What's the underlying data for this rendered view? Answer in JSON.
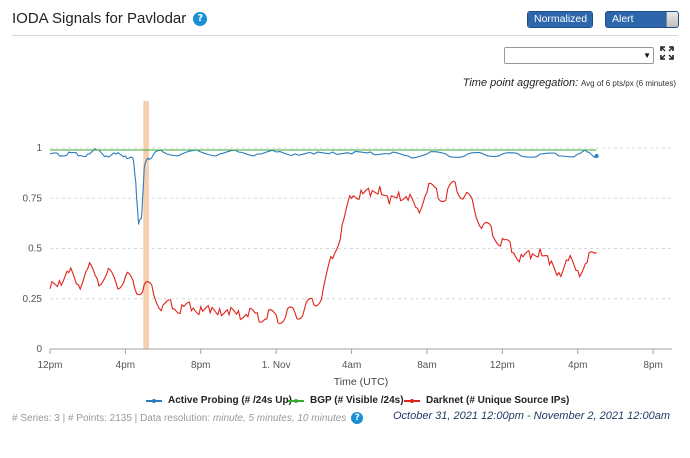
{
  "header": {
    "title": "IODA Signals for Pavlodar"
  },
  "toggles": {
    "normalized": "Normalized",
    "alert_bands": "Alert Bands"
  },
  "aggregation": {
    "label": "Time point aggregation:",
    "value": "Avg of 6 pts/px (6 minutes)"
  },
  "footer": {
    "series_count": "# Series: 3",
    "points_count": "# Points: 2135",
    "resolution_label": "Data resolution:",
    "resolution_value": "minute, 5 minutes, 10 minutes",
    "range": "October 31, 2021 12:00pm - November 2, 2021 12:00am"
  },
  "icons": {
    "help": "help-icon",
    "fullscreen": "fullscreen-icon",
    "dropdown": "chevron-down-icon"
  },
  "chart_data": {
    "type": "line",
    "xlabel": "Time (UTC)",
    "x_ticks": [
      "12pm",
      "4pm",
      "8pm",
      "1. Nov",
      "4am",
      "8am",
      "12pm",
      "4pm",
      "8pm"
    ],
    "x_tick_hours": [
      0,
      4,
      8,
      12,
      16,
      20,
      24,
      28,
      32
    ],
    "y_ticks": [
      "0",
      "0.25",
      "0.5",
      "0.75",
      "1"
    ],
    "ylim": [
      0,
      1
    ],
    "xlim_hours": [
      0,
      33
    ],
    "alert_band_hours": [
      4.95,
      5.25
    ],
    "grid": "horizontal dashed",
    "colors": {
      "active_probing": "#2b7bbd",
      "bgp": "#3aaa35",
      "darknet": "#e0231b",
      "alert_band": "#f6cfae"
    },
    "series": [
      {
        "name": "Active Probing (# /24s Up)",
        "color": "#2b7bbd",
        "x_hours": [
          0,
          0.5,
          1,
          1.5,
          2,
          2.5,
          3,
          3.5,
          4,
          4.4,
          4.55,
          4.7,
          4.85,
          5.0,
          5.2,
          5.5,
          6,
          7,
          8,
          9,
          10,
          11,
          12,
          13,
          14,
          15,
          16,
          17,
          18,
          19,
          20,
          21,
          22,
          23,
          24,
          25,
          26,
          27,
          28,
          28.5,
          29
        ],
        "values": [
          0.97,
          0.96,
          0.98,
          0.96,
          0.97,
          0.99,
          0.96,
          0.97,
          0.96,
          0.95,
          0.83,
          0.62,
          0.65,
          0.9,
          0.95,
          0.97,
          0.98,
          0.97,
          0.98,
          0.97,
          0.98,
          0.97,
          0.98,
          0.97,
          0.97,
          0.98,
          0.97,
          0.98,
          0.97,
          0.96,
          0.97,
          0.97,
          0.96,
          0.97,
          0.97,
          0.96,
          0.97,
          0.96,
          0.97,
          0.98,
          0.96
        ]
      },
      {
        "name": "BGP (# Visible /24s)",
        "color": "#3aaa35",
        "x_hours": [
          0,
          29
        ],
        "values": [
          0.99,
          0.99
        ]
      },
      {
        "name": "Darknet (# Unique Source IPs)",
        "color": "#e0231b",
        "x_hours": [
          0,
          0.5,
          1,
          1.5,
          2,
          2.5,
          3,
          3.5,
          4,
          4.5,
          5,
          5.5,
          6,
          6.5,
          7,
          7.5,
          8,
          8.5,
          9,
          9.5,
          10,
          10.5,
          11,
          11.5,
          12,
          12.5,
          13,
          13.5,
          14,
          14.5,
          15,
          15.5,
          16,
          16.5,
          17,
          17.5,
          18,
          18.5,
          19,
          19.5,
          20,
          20.5,
          21,
          21.5,
          22,
          22.5,
          23,
          23.5,
          24,
          24.5,
          25,
          25.5,
          26,
          26.5,
          27,
          27.5,
          28,
          28.5,
          29
        ],
        "values": [
          0.3,
          0.34,
          0.38,
          0.32,
          0.4,
          0.35,
          0.37,
          0.33,
          0.36,
          0.3,
          0.32,
          0.27,
          0.22,
          0.2,
          0.22,
          0.19,
          0.21,
          0.18,
          0.2,
          0.17,
          0.19,
          0.16,
          0.18,
          0.15,
          0.17,
          0.16,
          0.18,
          0.2,
          0.22,
          0.3,
          0.45,
          0.62,
          0.75,
          0.79,
          0.76,
          0.81,
          0.72,
          0.78,
          0.74,
          0.7,
          0.78,
          0.8,
          0.74,
          0.83,
          0.76,
          0.7,
          0.62,
          0.56,
          0.55,
          0.48,
          0.47,
          0.45,
          0.5,
          0.42,
          0.38,
          0.44,
          0.39,
          0.43,
          0.48
        ]
      }
    ]
  }
}
